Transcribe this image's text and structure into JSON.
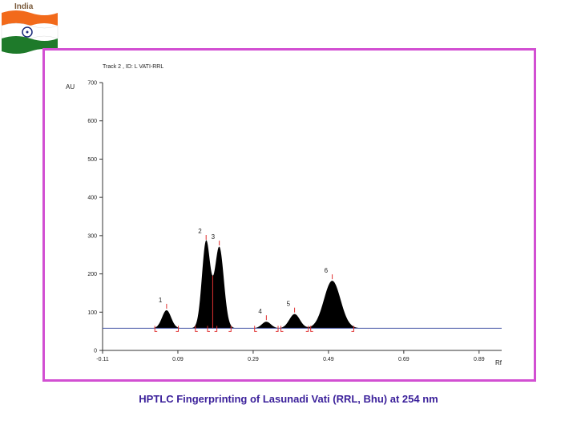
{
  "flag": {
    "label": "India",
    "colors": {
      "saffron": "#f26a1b",
      "white": "#ffffff",
      "green": "#1e7a2a",
      "chakra": "#1a2a7a"
    }
  },
  "caption": "HPTLC Fingerprinting of  Lasunadi Vati (RRL, Bhu) at 254 nm",
  "chart_data": {
    "type": "line",
    "track_title": "Track  2 , ID: L VATI-RRL",
    "ylabel": "AU",
    "xlabel": "Rf",
    "xlim": [
      -0.11,
      0.95
    ],
    "ylim": [
      0,
      700
    ],
    "x_ticks": [
      "-0.11",
      "0.09",
      "0.29",
      "0.49",
      "0.69",
      "0.89"
    ],
    "y_ticks": [
      "0",
      "100",
      "200",
      "300",
      "400",
      "500",
      "600",
      "700"
    ],
    "baseline": 58,
    "profile_end": 0.585,
    "peaks": [
      {
        "label": "1",
        "rf": 0.06,
        "height": 105,
        "width": 0.012
      },
      {
        "label": "2",
        "rf": 0.165,
        "height": 285,
        "width": 0.011
      },
      {
        "label": "3",
        "rf": 0.2,
        "height": 270,
        "width": 0.012
      },
      {
        "label": "4",
        "rf": 0.325,
        "height": 75,
        "width": 0.012
      },
      {
        "label": "5",
        "rf": 0.4,
        "height": 95,
        "width": 0.014
      },
      {
        "label": "6",
        "rf": 0.5,
        "height": 182,
        "width": 0.022
      }
    ],
    "colors": {
      "baseline": "#4a5aa8",
      "fill": "#000000",
      "markers": "#e03030",
      "frame": "#d24fd2",
      "caption": "#3a1f9a"
    }
  }
}
